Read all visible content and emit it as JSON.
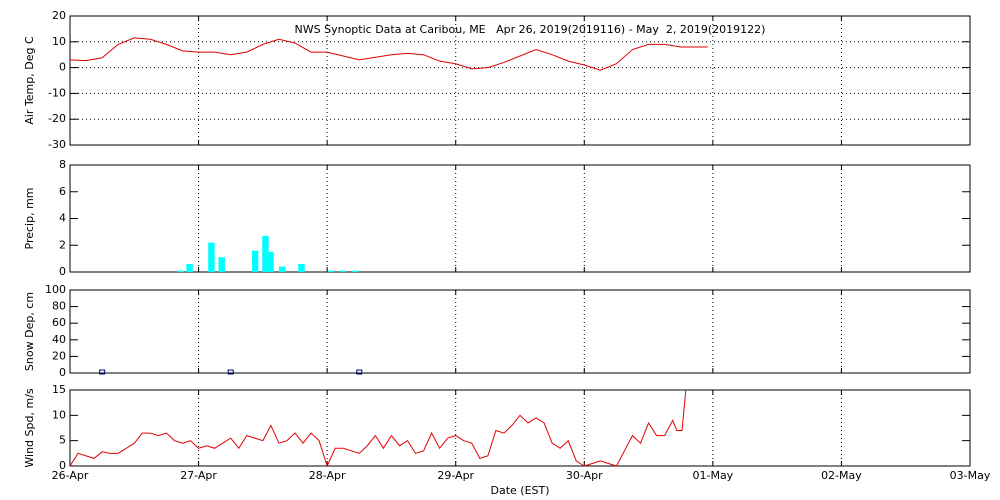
{
  "chart_data": [
    {
      "type": "line",
      "title": "NWS Synoptic Data at Caribou, ME   Apr 26, 2019(2019116) - May  2, 2019(2019122)",
      "ylabel": "Air Temp, Deg C",
      "color": "#e00000",
      "ygrid": true,
      "xlim": [
        0,
        7
      ],
      "ylim": [
        -30,
        20
      ],
      "yticks": [
        -30,
        -20,
        -10,
        0,
        10,
        20
      ],
      "x": [
        0,
        0.125,
        0.25,
        0.375,
        0.5,
        0.625,
        0.75,
        0.875,
        1,
        1.125,
        1.25,
        1.375,
        1.5,
        1.625,
        1.75,
        1.875,
        2,
        2.125,
        2.25,
        2.375,
        2.5,
        2.625,
        2.75,
        2.875,
        3,
        3.125,
        3.25,
        3.375,
        3.5,
        3.625,
        3.75,
        3.875,
        4,
        4.125,
        4.25,
        4.375,
        4.5,
        4.625,
        4.75,
        4.875,
        4.96
      ],
      "values": [
        3,
        2.7,
        3.8,
        9,
        11.5,
        11,
        9,
        6.5,
        6,
        6,
        5,
        6,
        9,
        11,
        9.5,
        6,
        6,
        4.5,
        3,
        4,
        5,
        5.5,
        5,
        2.5,
        1.5,
        -0.5,
        0,
        2,
        4.5,
        7,
        5,
        2.5,
        1,
        -1,
        1.5,
        7,
        9,
        9,
        8,
        8,
        8
      ]
    },
    {
      "type": "bar",
      "ylabel": "Precip, mm",
      "color": "#00ffff",
      "xlim": [
        0,
        7
      ],
      "ylim": [
        0,
        8
      ],
      "yticks": [
        0,
        2,
        4,
        6,
        8
      ],
      "x": [
        0.86,
        0.93,
        1.1,
        1.18,
        1.44,
        1.52,
        1.56,
        1.65,
        1.8,
        2.03,
        2.12,
        2.22
      ],
      "values": [
        0.1,
        0.6,
        2.2,
        1.1,
        1.6,
        2.7,
        1.5,
        0.4,
        0.6,
        0.1,
        0.1,
        0.1
      ]
    },
    {
      "type": "scatter",
      "ylabel": "Snow Dep, cm",
      "color": "#000080",
      "xlim": [
        0,
        7
      ],
      "ylim": [
        0,
        100
      ],
      "yticks": [
        0,
        20,
        40,
        60,
        80,
        100
      ],
      "x": [
        0.25,
        1.25,
        2.25
      ],
      "values": [
        0,
        0,
        0
      ]
    },
    {
      "type": "line",
      "ylabel": "Wind Spd, m/s",
      "xlabel": "Date (EST)",
      "color": "#e00000",
      "xlim": [
        0,
        7
      ],
      "ylim": [
        0,
        15
      ],
      "yticks": [
        0,
        5,
        10,
        15
      ],
      "xticks": [
        {
          "value": 0,
          "label": "26-Apr"
        },
        {
          "value": 1,
          "label": "27-Apr"
        },
        {
          "value": 2,
          "label": "28-Apr"
        },
        {
          "value": 3,
          "label": "29-Apr"
        },
        {
          "value": 4,
          "label": "30-Apr"
        },
        {
          "value": 5,
          "label": "01-May"
        },
        {
          "value": 6,
          "label": "02-May"
        },
        {
          "value": 7,
          "label": "03-May"
        }
      ],
      "x": [
        0,
        0.0625,
        0.125,
        0.1875,
        0.25,
        0.3125,
        0.375,
        0.4375,
        0.5,
        0.5625,
        0.625,
        0.6875,
        0.75,
        0.8125,
        0.875,
        0.9375,
        1,
        1.0625,
        1.125,
        1.1875,
        1.25,
        1.3125,
        1.375,
        1.4375,
        1.5,
        1.5625,
        1.625,
        1.6875,
        1.75,
        1.8125,
        1.875,
        1.9375,
        2,
        2.0625,
        2.125,
        2.1875,
        2.25,
        2.3125,
        2.375,
        2.4375,
        2.5,
        2.5625,
        2.625,
        2.6875,
        2.75,
        2.8125,
        2.875,
        2.9375,
        3,
        3.0625,
        3.125,
        3.1875,
        3.25,
        3.3125,
        3.375,
        3.4375,
        3.5,
        3.5625,
        3.625,
        3.6875,
        3.75,
        3.8125,
        3.875,
        3.9375,
        4,
        4.0625,
        4.125,
        4.1875,
        4.25,
        4.3125,
        4.375,
        4.4375,
        4.5,
        4.5625,
        4.625,
        4.6875,
        4.72,
        4.76,
        4.79
      ],
      "values": [
        0,
        2.5,
        2,
        1.5,
        2.8,
        2.5,
        2.5,
        3.5,
        4.5,
        6.5,
        6.5,
        6,
        6.5,
        5,
        4.5,
        5,
        3.5,
        4,
        3.5,
        4.5,
        5.5,
        3.5,
        6,
        5.5,
        5,
        8,
        4.5,
        5,
        6.5,
        4.5,
        6.5,
        5,
        0,
        3.5,
        3.5,
        3,
        2.5,
        4,
        6,
        3.5,
        6,
        4,
        5,
        2.5,
        3,
        6.5,
        3.5,
        5.5,
        6,
        5,
        4.5,
        1.5,
        2,
        7,
        6.5,
        8,
        10,
        8.5,
        9.5,
        8.5,
        4.5,
        3.5,
        5,
        1,
        0,
        0.5,
        1,
        0.5,
        0,
        3,
        6,
        4.5,
        8.5,
        6,
        6,
        9,
        7,
        7,
        15
      ]
    }
  ]
}
